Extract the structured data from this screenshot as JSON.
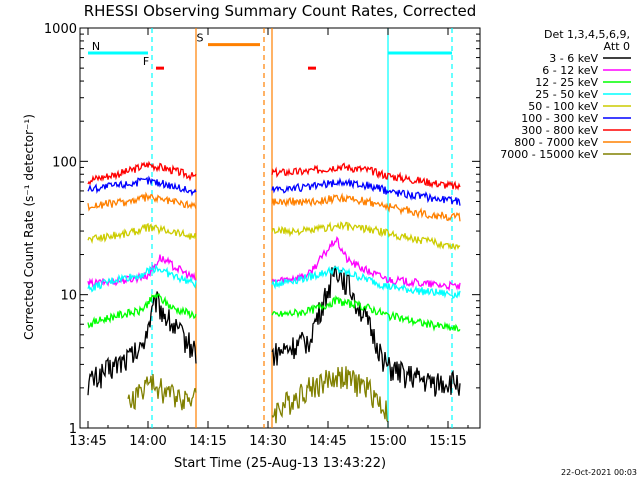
{
  "chart_data": {
    "type": "line",
    "title": "RHESSI Observing Summary Count Rates, Corrected",
    "xlabel": "Start Time (25-Aug-13 13:43:22)",
    "ylabel": "Corrected Count Rate (s⁻¹ detector⁻¹)",
    "yscale": "log",
    "xlim_minutes": [
      -2,
      98
    ],
    "xrange_clock": [
      "13:43",
      "15:23"
    ],
    "ylim": [
      1,
      1000
    ],
    "x_ticks": [
      "13:45",
      "14:00",
      "14:15",
      "14:30",
      "14:45",
      "15:00",
      "15:15"
    ],
    "y_ticks": [
      "1",
      "10",
      "100",
      "1000"
    ],
    "legend_header": [
      "Det 1,3,4,5,6,9,",
      "Att 0"
    ],
    "legend_placement": "right",
    "footer": "22-Oct-2021 00:03",
    "data_gap": [
      "14:12",
      "14:31"
    ],
    "series": [
      {
        "name": "3 - 6 keV",
        "color": "#000000",
        "x": [
          "13:45",
          "13:52",
          "13:58",
          "14:02",
          "14:06",
          "14:12",
          "14:31",
          "14:40",
          "14:44",
          "14:47",
          "14:50",
          "14:55",
          "15:00",
          "15:10",
          "15:18"
        ],
        "values": [
          2.2,
          3.0,
          3.8,
          9,
          6,
          3.8,
          3.5,
          4.5,
          9,
          16,
          12,
          6,
          2.8,
          2.2,
          2.2
        ]
      },
      {
        "name": "6 - 12 keV",
        "color": "#ff00ff",
        "x": [
          "13:45",
          "13:55",
          "14:00",
          "14:03",
          "14:07",
          "14:12",
          "14:31",
          "14:40",
          "14:44",
          "14:47",
          "14:50",
          "14:55",
          "15:00",
          "15:10",
          "15:18"
        ],
        "values": [
          12,
          13,
          14,
          19,
          16,
          13,
          12.5,
          14,
          20,
          26,
          18,
          15,
          13,
          12,
          11.5
        ]
      },
      {
        "name": "12 - 25 keV",
        "color": "#00ff00",
        "x": [
          "13:45",
          "13:52",
          "13:58",
          "14:02",
          "14:06",
          "14:12",
          "14:31",
          "14:40",
          "14:47",
          "14:55",
          "15:00",
          "15:10",
          "15:18"
        ],
        "values": [
          6,
          7,
          7.5,
          10,
          8,
          7,
          7,
          7.5,
          9,
          8,
          7,
          6,
          5.5
        ]
      },
      {
        "name": "25 - 50 keV",
        "color": "#00ffff",
        "x": [
          "13:45",
          "13:52",
          "13:58",
          "14:02",
          "14:06",
          "14:12",
          "14:31",
          "14:40",
          "14:47",
          "14:55",
          "15:00",
          "15:10",
          "15:18"
        ],
        "values": [
          11,
          13,
          14,
          16,
          14,
          12,
          12,
          13.5,
          15.5,
          13,
          11.5,
          10.5,
          10
        ]
      },
      {
        "name": "50 - 100 keV",
        "color": "#cccc00",
        "x": [
          "13:45",
          "13:55",
          "14:00",
          "14:06",
          "14:12",
          "14:31",
          "14:40",
          "14:48",
          "14:55",
          "15:00",
          "15:10",
          "15:18"
        ],
        "values": [
          26,
          29,
          32,
          30,
          27,
          30,
          30,
          33,
          31,
          29,
          25,
          23
        ]
      },
      {
        "name": "100 - 300 keV",
        "color": "#0000ff",
        "x": [
          "13:45",
          "13:55",
          "14:00",
          "14:06",
          "14:12",
          "14:31",
          "14:40",
          "14:48",
          "14:55",
          "15:00",
          "15:10",
          "15:18"
        ],
        "values": [
          62,
          68,
          72,
          66,
          58,
          62,
          64,
          70,
          66,
          60,
          54,
          50
        ]
      },
      {
        "name": "300 - 800 keV",
        "color": "#ff0000",
        "x": [
          "13:45",
          "13:55",
          "14:00",
          "14:06",
          "14:12",
          "14:31",
          "14:40",
          "14:48",
          "14:55",
          "15:00",
          "15:10",
          "15:18"
        ],
        "values": [
          72,
          84,
          95,
          86,
          76,
          82,
          84,
          92,
          86,
          78,
          70,
          64
        ]
      },
      {
        "name": "800 - 7000 keV",
        "color": "#ff8000",
        "x": [
          "13:45",
          "13:55",
          "14:00",
          "14:06",
          "14:12",
          "14:31",
          "14:40",
          "14:48",
          "14:55",
          "15:00",
          "15:10",
          "15:18"
        ],
        "values": [
          46,
          50,
          54,
          50,
          46,
          50,
          50,
          53,
          50,
          46,
          40,
          38
        ]
      },
      {
        "name": "7000 - 15000 keV",
        "color": "#808000",
        "x": [
          "13:55",
          "14:00",
          "14:06",
          "14:31",
          "14:40",
          "14:48",
          "14:55",
          "15:00"
        ],
        "values": [
          1.5,
          2.2,
          1.8,
          1.3,
          2.0,
          2.5,
          2.0,
          1.3
        ]
      }
    ],
    "annotations": [
      {
        "label": "N",
        "color": "#00ffff",
        "bar_from": "13:45",
        "bar_to": "14:00",
        "bar_level": 650
      },
      {
        "label": "",
        "color": "#00ffff",
        "bar_from": "15:00",
        "bar_to": "15:16",
        "bar_level": 650
      },
      {
        "label": "S",
        "color": "#ff8000",
        "bar_from": "14:15",
        "bar_to": "14:28",
        "bar_level": 750
      },
      {
        "label": "F",
        "color": "#ff0000",
        "bar_from": "14:02",
        "bar_to": "14:04",
        "bar_level": 500
      },
      {
        "label": "",
        "color": "#ff0000",
        "bar_from": "14:40",
        "bar_to": "14:42",
        "bar_level": 500
      }
    ],
    "vlines": [
      {
        "at": "14:01",
        "color": "#00ffff",
        "style": "dashed"
      },
      {
        "at": "14:12",
        "color": "#ff8000",
        "style": "solid"
      },
      {
        "at": "14:29",
        "color": "#ff8000",
        "style": "dashed"
      },
      {
        "at": "14:31",
        "color": "#ff8000",
        "style": "solid"
      },
      {
        "at": "15:00",
        "color": "#00ffff",
        "style": "solid"
      },
      {
        "at": "15:16",
        "color": "#00ffff",
        "style": "dashed"
      }
    ]
  }
}
